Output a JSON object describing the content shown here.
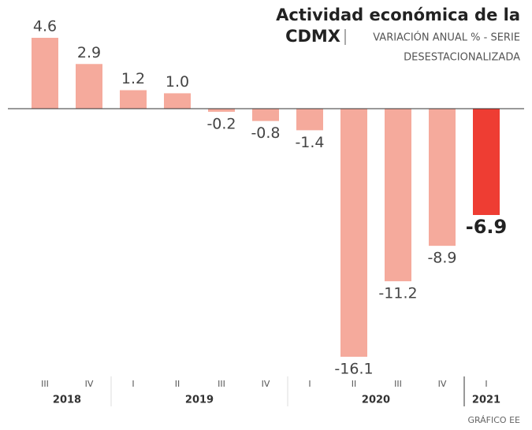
{
  "chart_data": {
    "type": "bar",
    "title": "Actividad económica de la",
    "title_bold_word": "CDMX",
    "subtitle": "VARIACIÓN ANUAL % - SERIE",
    "subtitle_line2": "DESESTACIONALIZADA",
    "source": "GRÁFICO EE",
    "groups": [
      {
        "name": "2018",
        "color": "#f5aa9c",
        "categories": [
          "III",
          "IV"
        ],
        "values": [
          4.6,
          2.9
        ],
        "value_labels": [
          "4.6",
          "2.9"
        ]
      },
      {
        "name": "2019",
        "color": "#f5aa9c",
        "categories": [
          "I",
          "II",
          "III",
          "IV"
        ],
        "values": [
          1.2,
          1.0,
          -0.2,
          -0.8
        ],
        "value_labels": [
          "1.2",
          "1.0",
          "-0.2",
          "-0.8"
        ]
      },
      {
        "name": "2020",
        "color": "#f5aa9c",
        "categories": [
          "I",
          "II",
          "III",
          "IV"
        ],
        "values": [
          -1.4,
          -16.1,
          -11.2,
          -8.9
        ],
        "value_labels": [
          "-1.4",
          "-16.1",
          "-11.2",
          "-8.9"
        ]
      },
      {
        "name": "2021",
        "color": "#ee3d33",
        "categories": [
          "I"
        ],
        "values": [
          -6.9
        ],
        "value_labels": [
          "-6.9"
        ]
      }
    ]
  }
}
